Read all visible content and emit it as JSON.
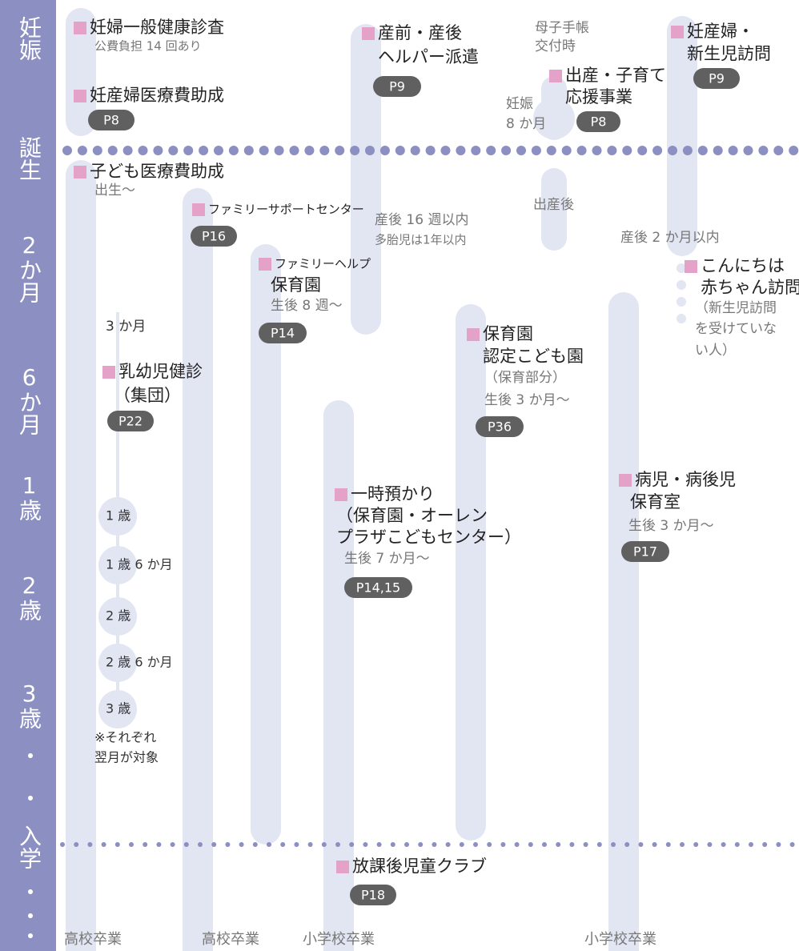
{
  "sidebar": [
    "妊娠",
    "誕生",
    "2か月",
    "6か月",
    "1歳",
    "2歳",
    "3歳",
    "・",
    "・",
    "入学",
    "・",
    "・",
    "・"
  ],
  "items": [
    {
      "title": [
        "妊婦一般健康診査"
      ],
      "notes": [
        "公費負担 14 回あり"
      ]
    },
    {
      "title": [
        "妊産婦医療費助成"
      ],
      "page": "P8"
    },
    {
      "title": [
        "産前・産後",
        "ヘルパー派遣"
      ],
      "page": "P9"
    },
    {
      "title": [
        "出産・子育て",
        "応援事業"
      ],
      "page": "P8"
    },
    {
      "title": [
        "妊産婦・",
        "新生児訪問"
      ],
      "page": "P9"
    },
    {
      "title": [
        "子ども医療費助成"
      ],
      "notes": [
        "出生～"
      ]
    },
    {
      "title": [
        "ファミリーサポートセンター"
      ],
      "page": "P16"
    },
    {
      "title": [
        "ファミリーヘルプ",
        "保育園"
      ],
      "notes": [
        "生後 8 週～"
      ],
      "page": "P14"
    },
    {
      "title": [
        "こんにちは",
        "赤ちゃん訪問"
      ],
      "notes": [
        "（新生児訪問",
        "を受けていな",
        "い人）"
      ]
    },
    {
      "title": [
        "乳幼児健診",
        "（集団）"
      ],
      "page": "P22"
    },
    {
      "title": [
        "保育園",
        "認定こども園"
      ],
      "notes": [
        "（保育部分）",
        "生後 3 か月～"
      ],
      "page": "P36"
    },
    {
      "title": [
        "一時預かり",
        "（保育園・オーレン",
        "プラザこどもセンター）"
      ],
      "notes": [
        "生後 7 か月～"
      ],
      "page": "P14,15"
    },
    {
      "title": [
        "病児・病後児",
        "保育室"
      ],
      "notes": [
        "生後 3 か月～"
      ],
      "page": "P17"
    },
    {
      "title": [
        "放課後児童クラブ"
      ],
      "page": "P18"
    }
  ],
  "labels": [
    "母子手帳",
    "交付時",
    "妊娠",
    "8 か月",
    "産後 16 週以内",
    "多胎児は1年以内",
    "出産後",
    "産後 2 か月以内",
    "3 か月"
  ],
  "checkups": [
    "1 歳",
    "1 歳 6 か月",
    "2 歳",
    "2 歳 6 か月",
    "3 歳"
  ],
  "footnote": [
    "※それぞれ",
    "翌月が対象"
  ],
  "graduations": [
    "高校卒業",
    "高校卒業",
    "小学校卒業",
    "小学校卒業"
  ]
}
